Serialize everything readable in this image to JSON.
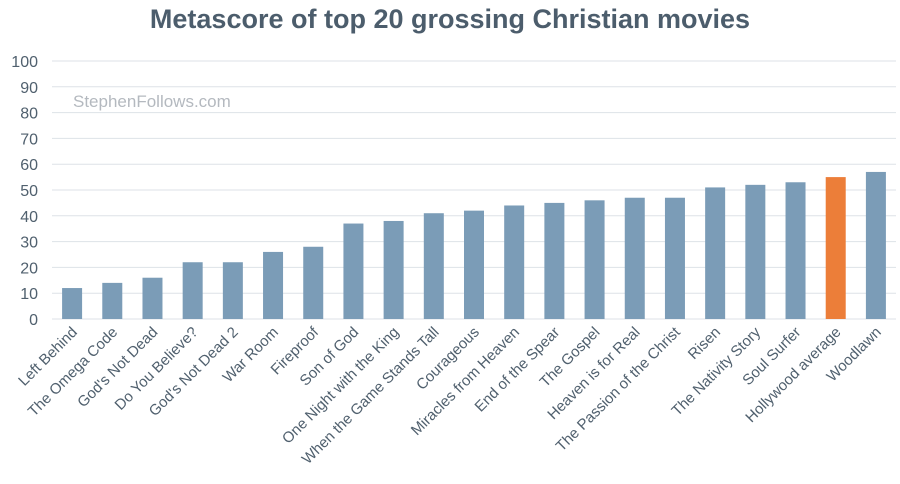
{
  "chart_data": {
    "type": "bar",
    "title": "Metascore of top 20 grossing Christian movies",
    "watermark": "StephenFollows.com",
    "xlabel": "",
    "ylabel": "",
    "ylim": [
      0,
      100
    ],
    "yticks": [
      0,
      10,
      20,
      30,
      40,
      50,
      60,
      70,
      80,
      90,
      100
    ],
    "grid": true,
    "categories": [
      "Left Behind",
      "The Omega Code",
      "God's Not Dead",
      "Do You Believe?",
      "God's Not Dead 2",
      "War Room",
      "Fireproof",
      "Son of God",
      "One Night with the King",
      "When the Game Stands Tall",
      "Courageous",
      "Miracles from Heaven",
      "End of the Spear",
      "The Gospel",
      "Heaven is for Real",
      "The Passion of the Christ",
      "Risen",
      "The Nativity Story",
      "Soul Surfer",
      "Hollywood average",
      "Woodlawn"
    ],
    "values": [
      12,
      14,
      16,
      22,
      22,
      26,
      28,
      37,
      38,
      41,
      42,
      44,
      45,
      46,
      47,
      47,
      51,
      52,
      53,
      55,
      57
    ],
    "highlight_category": "Hollywood average",
    "colors": {
      "bar": "#7b9cb7",
      "highlight": "#ec7e39",
      "title": "#4c5d6c",
      "tick": "#50606e",
      "grid": "#dde2e7",
      "watermark": "#b4b9bf"
    }
  }
}
